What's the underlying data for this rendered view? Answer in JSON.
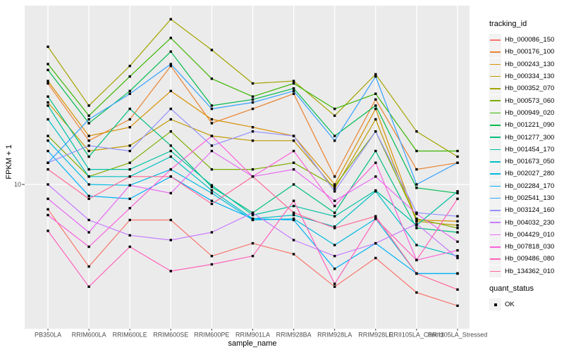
{
  "chart_data": {
    "type": "line",
    "title": "",
    "xlabel": "sample_name",
    "ylabel": "FPKM + 1",
    "y_scale": "log10",
    "y_tick_label": "10",
    "ylim_approx": [
      2,
      80
    ],
    "grid": "major-on",
    "legend_position": "right",
    "legend_title": "tracking_id",
    "legend2_title": "quant_status",
    "legend2_items": [
      "OK"
    ],
    "point_color": "#000000",
    "panel_bg": "#EBEBEB",
    "grid_color": "#FFFFFF",
    "key_bg": "#F2F2F2",
    "axis_text_color": "#4D4D4D",
    "categories": [
      "PB350LA",
      "RRIM600LA",
      "RRIM600LE",
      "RRIM600SE",
      "RRIM600PE",
      "RRIM901LA",
      "RRIM928BA",
      "RRIM928LA",
      "RRIM928LE",
      "RRII105LA_Control",
      "RRII105LA_Stressed"
    ],
    "series": [
      {
        "name": "Hb_000086_150",
        "color": "#F8766D",
        "values": [
          7.4,
          3.7,
          6.5,
          6.5,
          4.2,
          4.9,
          4.3,
          2.9,
          4.1,
          2.7,
          2.3
        ]
      },
      {
        "name": "Hb_000176_100",
        "color": "#EA8331",
        "values": [
          34,
          17,
          22,
          42,
          21,
          25,
          30,
          11,
          28,
          12,
          13
        ]
      },
      {
        "name": "Hb_000243_130",
        "color": "#D89000",
        "values": [
          35,
          18,
          20,
          31,
          22,
          20,
          18,
          10,
          25,
          6.5,
          6.4
        ]
      },
      {
        "name": "Hb_000334_130",
        "color": "#C09B00",
        "values": [
          27,
          15,
          16,
          22,
          18,
          17,
          17,
          9.5,
          22,
          6.4,
          6.1
        ]
      },
      {
        "name": "Hb_000352_070",
        "color": "#A3A500",
        "values": [
          53,
          26,
          42,
          74,
          51,
          34,
          35,
          23,
          38,
          19,
          14
        ]
      },
      {
        "name": "Hb_000573_060",
        "color": "#7CAE00",
        "values": [
          18,
          11,
          13,
          19,
          12,
          12,
          13,
          9.8,
          19,
          6.6,
          5.9
        ]
      },
      {
        "name": "Hb_000949_020",
        "color": "#39B600",
        "values": [
          43,
          23,
          37,
          59,
          36,
          29,
          34,
          25,
          30,
          15,
          15
        ]
      },
      {
        "name": "Hb_001221_090",
        "color": "#00BB4E",
        "values": [
          40,
          21,
          31,
          50,
          26,
          28,
          32,
          18,
          26,
          9.6,
          9.0
        ]
      },
      {
        "name": "Hb_001277_300",
        "color": "#00BF7D",
        "values": [
          29,
          14,
          25,
          16,
          9.7,
          7.1,
          10,
          7.1,
          15,
          5.9,
          5.6
        ]
      },
      {
        "name": "Hb_001454_170",
        "color": "#00C1A3",
        "values": [
          26,
          12,
          12,
          15,
          9.9,
          6.9,
          7.7,
          6.8,
          9.3,
          6.1,
          9.2
        ]
      },
      {
        "name": "Hb_001673_050",
        "color": "#00BFC4",
        "values": [
          22,
          11,
          11,
          14,
          9.3,
          6.6,
          6.9,
          6.0,
          9.2,
          4.8,
          4.2
        ]
      },
      {
        "name": "Hb_002027_280",
        "color": "#00BAE0",
        "values": [
          17,
          10,
          9.9,
          12,
          9.0,
          6.5,
          6.6,
          4.8,
          6.6,
          3.4,
          3.4
        ]
      },
      {
        "name": "Hb_002284_170",
        "color": "#00B0F6",
        "values": [
          15,
          8.7,
          8.4,
          11,
          8.2,
          6.6,
          6.5,
          3.6,
          4.9,
          3.4,
          3.4
        ]
      },
      {
        "name": "Hb_002541_130",
        "color": "#35A2FF",
        "values": [
          13,
          22,
          30,
          43,
          25,
          27,
          31,
          17,
          37,
          10,
          13
        ]
      },
      {
        "name": "Hb_003124_160",
        "color": "#9590FF",
        "values": [
          13,
          16,
          15,
          25,
          16,
          19,
          18,
          9.2,
          19,
          7.1,
          6.8
        ]
      },
      {
        "name": "Hb_004032_230",
        "color": "#C77CFF",
        "values": [
          10,
          6.5,
          5.4,
          5.1,
          5.6,
          7.1,
          5.1,
          4.2,
          4.9,
          6.2,
          4.1
        ]
      },
      {
        "name": "Hb_004429_010",
        "color": "#E76BF3",
        "values": [
          8.4,
          5.6,
          9.9,
          9.0,
          15,
          11,
          12,
          8.2,
          11,
          7.0,
          5.0
        ]
      },
      {
        "name": "Hb_007818_030",
        "color": "#FA62DB",
        "values": [
          6.9,
          4.7,
          7.5,
          12,
          18,
          11,
          15,
          7.7,
          13,
          4.0,
          4.5
        ]
      },
      {
        "name": "Hb_009486_080",
        "color": "#FF62BC",
        "values": [
          5.7,
          2.9,
          4.7,
          3.5,
          3.8,
          4.2,
          8.2,
          3.0,
          6.6,
          4.0,
          8.4
        ]
      },
      {
        "name": "Hb_134362_010",
        "color": "#FF6A98",
        "values": [
          12,
          8.4,
          11,
          11,
          7.9,
          11,
          7.1,
          5.9,
          6.8,
          3.4,
          2.8
        ]
      }
    ]
  }
}
